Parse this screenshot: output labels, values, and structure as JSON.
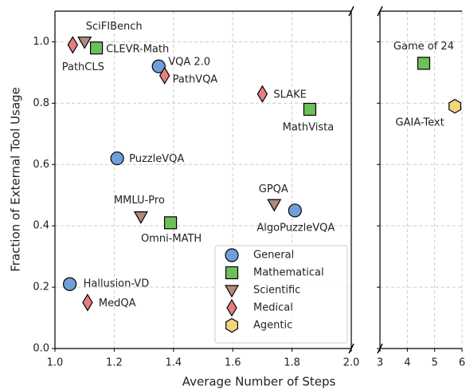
{
  "chart_data": {
    "type": "scatter",
    "xlabel": "Average Number of Steps",
    "ylabel": "Fraction of External Tool Usage",
    "ylim": [
      0,
      1.1
    ],
    "yticks": [
      {
        "value": 0,
        "label": "0.0"
      },
      {
        "value": 0.2,
        "label": "0.2"
      },
      {
        "value": 0.4,
        "label": "0.4"
      },
      {
        "value": 0.6,
        "label": "0.6"
      },
      {
        "value": 0.8,
        "label": "0.8"
      },
      {
        "value": 1.0,
        "label": "1.0"
      }
    ],
    "panels": [
      {
        "xlim": [
          1.0,
          2.0
        ],
        "xticks": [
          {
            "value": 1.0,
            "label": "1.0"
          },
          {
            "value": 1.2,
            "label": "1.2"
          },
          {
            "value": 1.4,
            "label": "1.4"
          },
          {
            "value": 1.6,
            "label": "1.6"
          },
          {
            "value": 1.8,
            "label": "1.8"
          },
          {
            "value": 2.0,
            "label": "2.0"
          }
        ]
      },
      {
        "xlim": [
          3,
          6
        ],
        "xticks": [
          3,
          4,
          5,
          6
        ]
      }
    ],
    "grid": true,
    "legend": "lower right",
    "series": [
      {
        "name": "General",
        "color": "#6f9fd8",
        "marker": "circle",
        "point_labels": [
          "VQA 2.0",
          "PuzzleVQA",
          "AlgoPuzzleVQA",
          "Hallusion-VD"
        ],
        "x": [
          1.35,
          1.21,
          1.81,
          1.05
        ],
        "values": [
          0.92,
          0.62,
          0.45,
          0.21
        ],
        "panel": [
          0,
          0,
          0,
          0
        ]
      },
      {
        "name": "Mathematical",
        "color": "#6dbf5c",
        "marker": "square",
        "point_labels": [
          "CLEVR-Math",
          "Omni-MATH",
          "MathVista",
          "Game of 24"
        ],
        "x": [
          1.14,
          1.39,
          1.86,
          4.6
        ],
        "values": [
          0.98,
          0.41,
          0.78,
          0.93
        ],
        "panel": [
          0,
          0,
          0,
          1
        ]
      },
      {
        "name": "Scientific",
        "color": "#b08a7a",
        "marker": "triangle-down",
        "point_labels": [
          "SciFIBench",
          "MMLU-Pro",
          "GPQA"
        ],
        "x": [
          1.1,
          1.29,
          1.74
        ],
        "values": [
          1.0,
          0.43,
          0.47
        ],
        "panel": [
          0,
          0,
          0
        ]
      },
      {
        "name": "Medical",
        "color": "#e67f80",
        "marker": "diamond",
        "point_labels": [
          "PathCLS",
          "PathVQA",
          "SLAKE",
          "MedQA"
        ],
        "x": [
          1.06,
          1.37,
          1.7,
          1.11
        ],
        "values": [
          0.99,
          0.89,
          0.83,
          0.15
        ],
        "panel": [
          0,
          0,
          0,
          0
        ]
      },
      {
        "name": "Agentic",
        "color": "#f6d47c",
        "marker": "hexagon",
        "point_labels": [
          "GAIA-Text"
        ],
        "x": [
          5.74
        ],
        "values": [
          0.79
        ],
        "panel": [
          1
        ]
      }
    ]
  }
}
